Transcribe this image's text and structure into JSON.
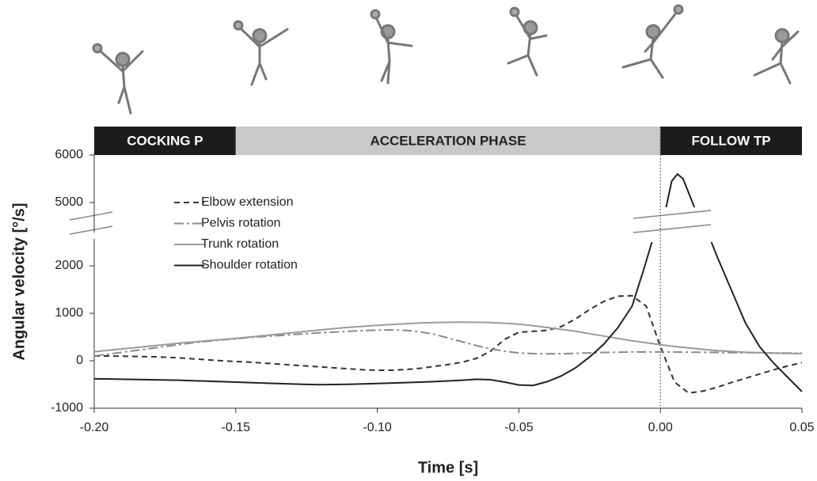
{
  "chart_data": {
    "type": "line",
    "xlabel": "Time [s]",
    "ylabel": "Angular velocity [°/s]",
    "phases": [
      {
        "label": "COCKING P",
        "start": -0.2,
        "end": -0.15,
        "color": "#1c1c1c",
        "text_color": "#ffffff"
      },
      {
        "label": "ACCELERATION PHASE",
        "start": -0.15,
        "end": 0,
        "color": "#c9c9c9",
        "text_color": "#222222"
      },
      {
        "label": "FOLLOW TP",
        "start": 0,
        "end": 0.05,
        "color": "#1c1c1c",
        "text_color": "#ffffff"
      }
    ],
    "vline_x": 0,
    "x": [
      -0.2,
      -0.195,
      -0.19,
      -0.185,
      -0.18,
      -0.175,
      -0.17,
      -0.165,
      -0.16,
      -0.155,
      -0.15,
      -0.145,
      -0.14,
      -0.135,
      -0.13,
      -0.125,
      -0.12,
      -0.115,
      -0.11,
      -0.105,
      -0.1,
      -0.095,
      -0.09,
      -0.085,
      -0.08,
      -0.075,
      -0.07,
      -0.065,
      -0.06,
      -0.055,
      -0.05,
      -0.045,
      -0.04,
      -0.035,
      -0.03,
      -0.025,
      -0.02,
      -0.015,
      -0.01,
      -0.005,
      0,
      0.005,
      0.01,
      0.015,
      0.02,
      0.025,
      0.03,
      0.035,
      0.04,
      0.045,
      0.05
    ],
    "series": [
      {
        "name": "Elbow extension",
        "color": "#333333",
        "dash": "dashed",
        "values": [
          100,
          100,
          95,
          90,
          85,
          75,
          60,
          40,
          20,
          0,
          -15,
          -30,
          -50,
          -70,
          -90,
          -110,
          -130,
          -150,
          -170,
          -190,
          -200,
          -200,
          -185,
          -160,
          -120,
          -80,
          -30,
          50,
          200,
          450,
          600,
          620,
          640,
          720,
          880,
          1080,
          1250,
          1360,
          1370,
          1150,
          300,
          -450,
          -680,
          -640,
          -560,
          -460,
          -370,
          -280,
          -190,
          -110,
          -40
        ]
      },
      {
        "name": "Pelvis rotation",
        "color": "#8a8a8a",
        "dash": "dashdot",
        "values": [
          100,
          140,
          180,
          220,
          260,
          300,
          340,
          380,
          410,
          440,
          460,
          490,
          510,
          530,
          550,
          570,
          590,
          605,
          620,
          635,
          645,
          650,
          640,
          610,
          560,
          480,
          400,
          320,
          250,
          200,
          165,
          150,
          145,
          150,
          155,
          165,
          175,
          180,
          185,
          185,
          185,
          185,
          180,
          178,
          175,
          172,
          170,
          168,
          165,
          162,
          160
        ]
      },
      {
        "name": "Trunk rotation",
        "color": "#9a9a9a",
        "dash": "solid",
        "values": [
          190,
          220,
          250,
          280,
          310,
          340,
          370,
          395,
          420,
          445,
          470,
          500,
          530,
          560,
          590,
          620,
          650,
          680,
          705,
          725,
          745,
          765,
          780,
          795,
          805,
          810,
          812,
          810,
          805,
          790,
          770,
          740,
          700,
          660,
          620,
          570,
          520,
          470,
          420,
          380,
          340,
          300,
          270,
          240,
          215,
          195,
          180,
          170,
          160,
          155,
          150
        ]
      },
      {
        "name": "Shoulder rotation",
        "color": "#222222",
        "dash": "solid",
        "x": [
          -0.2,
          -0.19,
          -0.18,
          -0.17,
          -0.16,
          -0.15,
          -0.14,
          -0.13,
          -0.12,
          -0.11,
          -0.1,
          -0.09,
          -0.08,
          -0.07,
          -0.065,
          -0.06,
          -0.055,
          -0.05,
          -0.045,
          -0.04,
          -0.035,
          -0.03,
          -0.025,
          -0.02,
          -0.015,
          -0.01,
          -0.006,
          -0.003,
          -0.001,
          0.002,
          0.004,
          0.006,
          0.008,
          0.01,
          0.012,
          0.015,
          0.018,
          0.02,
          0.025,
          0.03,
          0.035,
          0.04,
          0.045,
          0.05
        ],
        "values": [
          -380,
          -390,
          -400,
          -410,
          -430,
          -450,
          -470,
          -490,
          -505,
          -495,
          -480,
          -460,
          -440,
          -410,
          -390,
          -400,
          -450,
          -510,
          -520,
          -440,
          -320,
          -150,
          80,
          350,
          700,
          1150,
          1900,
          2500,
          null,
          4900,
          5450,
          5600,
          5500,
          5200,
          4900,
          null,
          2500,
          2200,
          1500,
          800,
          300,
          -50,
          -350,
          -650
        ]
      }
    ],
    "xlim": [
      -0.2,
      0.05
    ],
    "xticks": [
      {
        "value": -0.2,
        "label": "-0.20"
      },
      {
        "value": -0.15,
        "label": "-0.15"
      },
      {
        "value": -0.1,
        "label": "-0.10"
      },
      {
        "value": -0.05,
        "label": "-0.05"
      },
      {
        "value": 0,
        "label": "0.00"
      },
      {
        "value": 0.05,
        "label": "0.05"
      }
    ],
    "ylim": [
      -1000,
      6000
    ],
    "y_break": [
      2500,
      4500
    ],
    "yticks": [
      -1000,
      0,
      1000,
      2000,
      5000,
      6000
    ],
    "legend": "upper-left"
  }
}
